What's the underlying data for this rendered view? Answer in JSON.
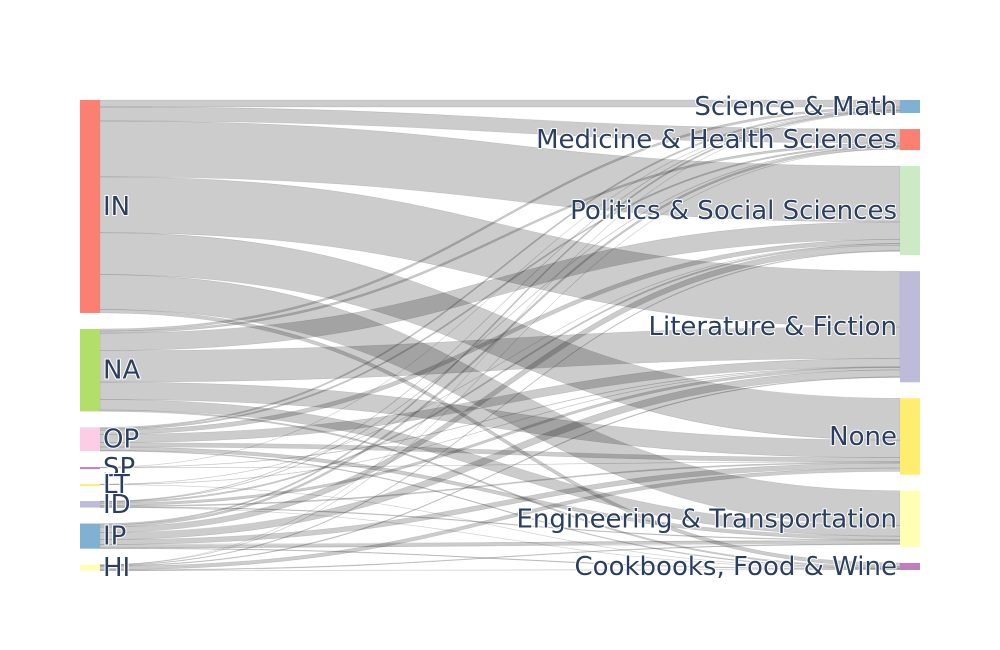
{
  "chart_data": {
    "type": "sankey",
    "sources": [
      {
        "name": "IN",
        "color": "#fb8072"
      },
      {
        "name": "NA",
        "color": "#b3de69"
      },
      {
        "name": "OP",
        "color": "#fccde5"
      },
      {
        "name": "SP",
        "color": "#bc80bd"
      },
      {
        "name": "LT",
        "color": "#ffed6f"
      },
      {
        "name": "ID",
        "color": "#bebada"
      },
      {
        "name": "IP",
        "color": "#80b1d3"
      },
      {
        "name": "HI",
        "color": "#ffffb3"
      }
    ],
    "targets": [
      {
        "name": "Science & Math",
        "color": "#80b1d3"
      },
      {
        "name": "Medicine & Health Sciences",
        "color": "#fb8072"
      },
      {
        "name": "Politics & Social Sciences",
        "color": "#ccebc5"
      },
      {
        "name": "Literature & Fiction",
        "color": "#bebada"
      },
      {
        "name": "None",
        "color": "#ffed6f"
      },
      {
        "name": "Engineering & Transportation",
        "color": "#ffffb3"
      },
      {
        "name": "Cookbooks, Food & Wine",
        "color": "#bc80bd"
      }
    ],
    "links": [
      {
        "source": "IN",
        "target": "Science & Math",
        "value": 1
      },
      {
        "source": "IN",
        "target": "Medicine & Health Sciences",
        "value": 2
      },
      {
        "source": "IN",
        "target": "Politics & Social Sciences",
        "value": 8
      },
      {
        "source": "IN",
        "target": "Literature & Fiction",
        "value": 8
      },
      {
        "source": "IN",
        "target": "None",
        "value": 6
      },
      {
        "source": "IN",
        "target": "Engineering & Transportation",
        "value": 5
      },
      {
        "source": "IN",
        "target": "Cookbooks, Food & Wine",
        "value": 0.5
      },
      {
        "source": "NA",
        "target": "Science & Math",
        "value": 0.3
      },
      {
        "source": "NA",
        "target": "Medicine & Health Sciences",
        "value": 0.3
      },
      {
        "source": "NA",
        "target": "Politics & Social Sciences",
        "value": 2.5
      },
      {
        "source": "NA",
        "target": "Literature & Fiction",
        "value": 4.5
      },
      {
        "source": "NA",
        "target": "None",
        "value": 2.5
      },
      {
        "source": "NA",
        "target": "Engineering & Transportation",
        "value": 1.5
      },
      {
        "source": "NA",
        "target": "Cookbooks, Food & Wine",
        "value": 0.2
      },
      {
        "source": "OP",
        "target": "Science & Math",
        "value": 0.2
      },
      {
        "source": "OP",
        "target": "Medicine & Health Sciences",
        "value": 0.2
      },
      {
        "source": "OP",
        "target": "Politics & Social Sciences",
        "value": 0.6
      },
      {
        "source": "OP",
        "target": "Literature & Fiction",
        "value": 1.2
      },
      {
        "source": "OP",
        "target": "None",
        "value": 0.6
      },
      {
        "source": "OP",
        "target": "Engineering & Transportation",
        "value": 0.5
      },
      {
        "source": "OP",
        "target": "Cookbooks, Food & Wine",
        "value": 0.1
      },
      {
        "source": "SP",
        "target": "Science & Math",
        "value": 0.02
      },
      {
        "source": "SP",
        "target": "Literature & Fiction",
        "value": 0.05
      },
      {
        "source": "SP",
        "target": "None",
        "value": 0.03
      },
      {
        "source": "LT",
        "target": "Politics & Social Sciences",
        "value": 0.03
      },
      {
        "source": "LT",
        "target": "Literature & Fiction",
        "value": 0.04
      },
      {
        "source": "LT",
        "target": "Cookbooks, Food & Wine",
        "value": 0.02
      },
      {
        "source": "ID",
        "target": "Science & Math",
        "value": 0.05
      },
      {
        "source": "ID",
        "target": "Medicine & Health Sciences",
        "value": 0.05
      },
      {
        "source": "ID",
        "target": "Politics & Social Sciences",
        "value": 0.2
      },
      {
        "source": "ID",
        "target": "Literature & Fiction",
        "value": 0.35
      },
      {
        "source": "ID",
        "target": "None",
        "value": 0.15
      },
      {
        "source": "ID",
        "target": "Engineering & Transportation",
        "value": 0.1
      },
      {
        "source": "ID",
        "target": "Cookbooks, Food & Wine",
        "value": 0.02
      },
      {
        "source": "IP",
        "target": "Science & Math",
        "value": 0.2
      },
      {
        "source": "IP",
        "target": "Medicine & Health Sciences",
        "value": 0.3
      },
      {
        "source": "IP",
        "target": "Politics & Social Sciences",
        "value": 0.8
      },
      {
        "source": "IP",
        "target": "Literature & Fiction",
        "value": 1.0
      },
      {
        "source": "IP",
        "target": "None",
        "value": 0.7
      },
      {
        "source": "IP",
        "target": "Engineering & Transportation",
        "value": 0.5
      },
      {
        "source": "IP",
        "target": "Cookbooks, Food & Wine",
        "value": 0.1
      },
      {
        "source": "HI",
        "target": "Science & Math",
        "value": 0.02
      },
      {
        "source": "HI",
        "target": "Medicine & Health Sciences",
        "value": 0.03
      },
      {
        "source": "HI",
        "target": "Politics & Social Sciences",
        "value": 0.08
      },
      {
        "source": "HI",
        "target": "Literature & Fiction",
        "value": 0.1
      },
      {
        "source": "HI",
        "target": "None",
        "value": 0.5
      },
      {
        "source": "HI",
        "target": "Engineering & Transportation",
        "value": 0.1
      },
      {
        "source": "HI",
        "target": "Cookbooks, Food & Wine",
        "value": 0.03
      }
    ]
  }
}
